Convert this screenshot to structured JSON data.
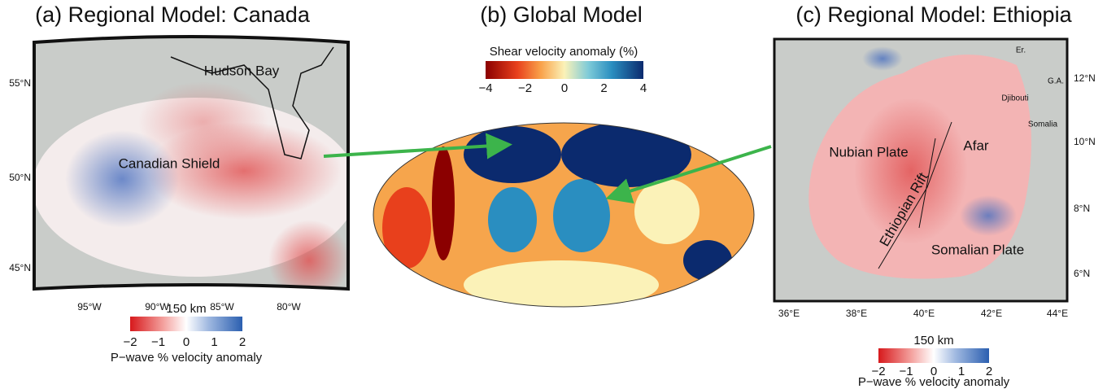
{
  "panels": [
    {
      "title": "(a) Regional Model: Canada",
      "lat_labels": [
        "55°N",
        "50°N",
        "45°N"
      ],
      "lon_labels": [
        "95°W",
        "90°W",
        "85°W",
        "80°W"
      ],
      "places": [
        "Hudson Bay",
        "Canadian Shield"
      ],
      "colorbar": {
        "title": "150 km",
        "ticks": [
          "−2",
          "−1",
          "0",
          "1",
          "2"
        ],
        "label": "P−wave % velocity anomaly"
      }
    },
    {
      "title": "(b) Global Model",
      "colorbar": {
        "title": "Shear velocity anomaly (%)",
        "ticks": [
          "−4",
          "−2",
          "0",
          "2",
          "4"
        ]
      }
    },
    {
      "title": "(c) Regional Model: Ethiopia",
      "lat_labels": [
        "12°N",
        "10°N",
        "8°N",
        "6°N"
      ],
      "lon_labels": [
        "36°E",
        "38°E",
        "40°E",
        "42°E",
        "44°E"
      ],
      "places": [
        "Er.",
        "G.A.",
        "Djibouti",
        "Somalia",
        "Afar",
        "Nubian Plate",
        "Ethiopian Rift",
        "Somalian Plate"
      ],
      "colorbar": {
        "title": "150 km",
        "ticks": [
          "−2",
          "−1",
          "0",
          "1",
          "2"
        ],
        "label": "P−wave % velocity anomaly"
      }
    }
  ]
}
